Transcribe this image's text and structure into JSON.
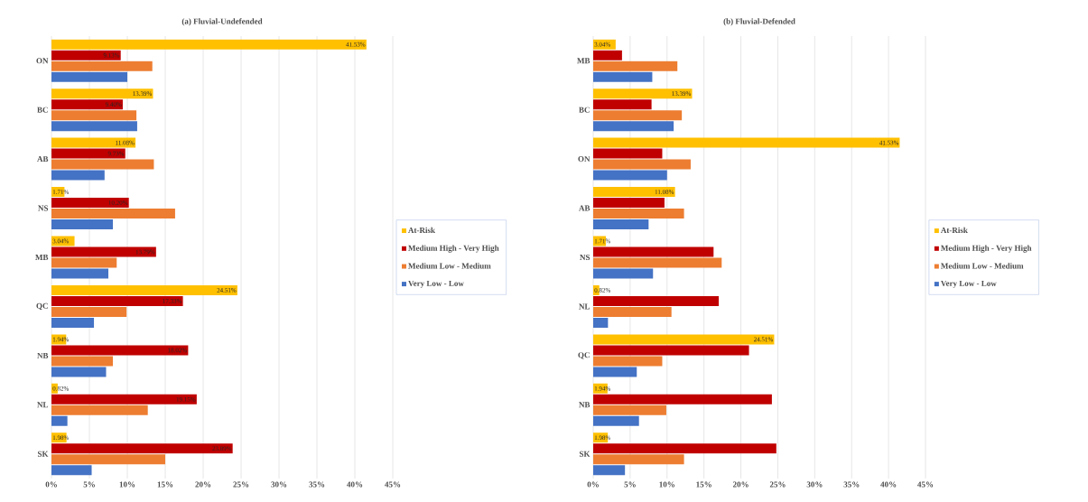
{
  "chart_data": [
    {
      "type": "bar",
      "orientation": "horizontal",
      "title": "(a) Fluvial-Undefended",
      "categories": [
        "ON",
        "BC",
        "AB",
        "NS",
        "MB",
        "QC",
        "NB",
        "NL",
        "SK"
      ],
      "series": [
        {
          "name": "At-Risk",
          "color": "#ffc000",
          "values": [
            41.53,
            13.39,
            11.08,
            1.71,
            3.04,
            24.51,
            1.94,
            0.82,
            1.98
          ],
          "value_labels": [
            "41.53%",
            "13.39%",
            "11.08%",
            "1.71%",
            "3.04%",
            "24.51%",
            "1.94%",
            "0.82%",
            "1.98%"
          ]
        },
        {
          "name": "Medium High - Very High",
          "color": "#c00000",
          "values": [
            9.13,
            9.4,
            9.73,
            10.2,
            13.79,
            17.33,
            18.02,
            19.15,
            23.89
          ],
          "value_labels": [
            "9.13%",
            "9.40%",
            "9.73%",
            "10.20%",
            "13.79%",
            "17.33%",
            "18.02%",
            "19.15%",
            "23.89%"
          ]
        },
        {
          "name": "Medium Low - Medium",
          "color": "#ed7d31",
          "values": [
            13.3,
            11.2,
            13.5,
            16.3,
            8.6,
            9.9,
            8.1,
            12.7,
            15.0
          ]
        },
        {
          "name": "Very Low - Low",
          "color": "#4472c4",
          "values": [
            10.0,
            11.3,
            7.0,
            8.1,
            7.5,
            5.6,
            7.2,
            2.1,
            5.3
          ]
        }
      ],
      "xlim": [
        0,
        45
      ],
      "xticks": [
        {
          "value": 0,
          "label": "0%"
        },
        {
          "value": 5,
          "label": "5%"
        },
        {
          "value": 10,
          "label": "10%"
        },
        {
          "value": 15,
          "label": "15%"
        },
        {
          "value": 20,
          "label": "20%"
        },
        {
          "value": 25,
          "label": "25%"
        },
        {
          "value": 30,
          "label": "30%"
        },
        {
          "value": 35,
          "label": "35%"
        },
        {
          "value": 40,
          "label": "40%"
        },
        {
          "value": 45,
          "label": "45%"
        }
      ],
      "grid": "x",
      "legend": "right"
    },
    {
      "type": "bar",
      "orientation": "horizontal",
      "title": "(b) Fluvial-Defended",
      "categories": [
        "MB",
        "BC",
        "ON",
        "AB",
        "NS",
        "NL",
        "QC",
        "NB",
        "SK"
      ],
      "series": [
        {
          "name": "At-Risk",
          "color": "#ffc000",
          "values": [
            3.04,
            13.39,
            41.53,
            11.08,
            1.71,
            0.82,
            24.51,
            1.94,
            1.98
          ],
          "value_labels": [
            "3.04%",
            "13.39%",
            "41.53%",
            "11.08%",
            "1.71%",
            "0.82%",
            "24.51%",
            "1.94%",
            "1.98%"
          ]
        },
        {
          "name": "Medium High - Very High",
          "color": "#c00000",
          "values": [
            3.9,
            7.9,
            9.35,
            9.65,
            16.3,
            17.0,
            21.1,
            24.2,
            24.8
          ]
        },
        {
          "name": "Medium Low - Medium",
          "color": "#ed7d31",
          "values": [
            11.4,
            12.0,
            13.2,
            12.3,
            17.4,
            10.6,
            9.35,
            9.9,
            12.3
          ]
        },
        {
          "name": "Very Low - Low",
          "color": "#4472c4",
          "values": [
            8.0,
            10.9,
            10.0,
            7.5,
            8.1,
            2.0,
            5.9,
            6.2,
            4.3
          ]
        }
      ],
      "xlim": [
        0,
        45
      ],
      "xticks": [
        {
          "value": 0,
          "label": "0%"
        },
        {
          "value": 5,
          "label": "5%"
        },
        {
          "value": 10,
          "label": "10%"
        },
        {
          "value": 15,
          "label": "15%"
        },
        {
          "value": 20,
          "label": "20%"
        },
        {
          "value": 25,
          "label": "25%"
        },
        {
          "value": 30,
          "label": "30%"
        },
        {
          "value": 35,
          "label": "35%"
        },
        {
          "value": 40,
          "label": "40%"
        },
        {
          "value": 45,
          "label": "45%"
        }
      ],
      "grid": "x",
      "legend": "right"
    }
  ]
}
